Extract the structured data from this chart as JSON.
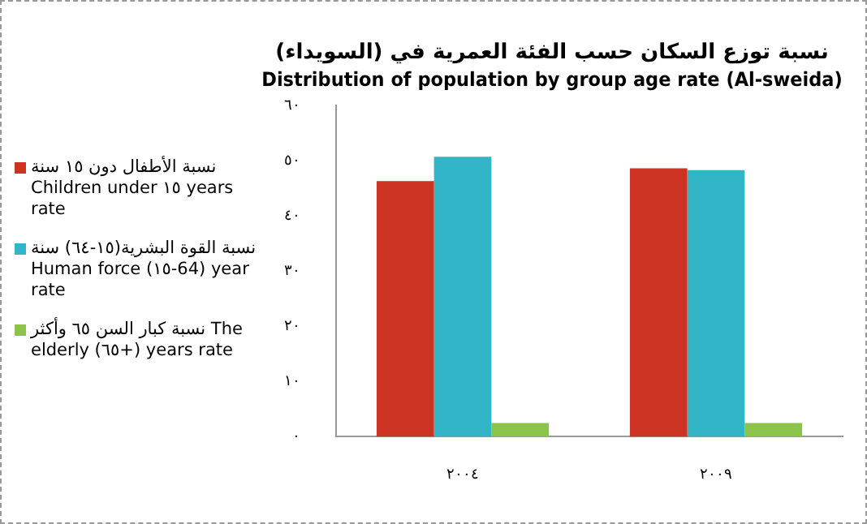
{
  "chart_data": {
    "type": "bar",
    "title": "نسبة توزع السكان حسب الفئة العمرية في (السويداء)",
    "subtitle": "Distribution of population by group age rate (Al-sweida)",
    "categories": [
      "٢٠٠٤",
      "٢٠٠٩"
    ],
    "series": [
      {
        "name": "نسبة الأطفال دون ١٥ سنة Children under ١٥ years rate",
        "color": "#cc3322",
        "values": [
          46.3,
          48.6
        ]
      },
      {
        "name": "نسبة القوة البشرية(١٥-٦٤) سنة Human force (١٥-64) year rate",
        "color": "#33b5c8",
        "values": [
          50.7,
          48.3
        ]
      },
      {
        "name": "نسبة كبار السن ٦٥ وأكثر The elderly (٦٥+) years rate",
        "color": "#8cc34a",
        "values": [
          2.5,
          2.5
        ]
      }
    ],
    "ylim": [
      0,
      60
    ],
    "yticks": [
      {
        "value": 0,
        "label": "٠"
      },
      {
        "value": 10,
        "label": "١٠"
      },
      {
        "value": 20,
        "label": "٢٠"
      },
      {
        "value": 30,
        "label": "٣٠"
      },
      {
        "value": 40,
        "label": "٤٠"
      },
      {
        "value": 50,
        "label": "٥٠"
      },
      {
        "value": 60,
        "label": "٦٠"
      }
    ],
    "grid": false,
    "legend": "left"
  }
}
